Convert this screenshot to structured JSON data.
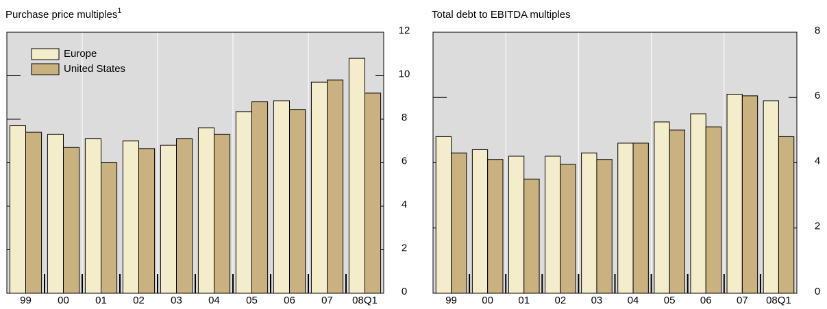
{
  "chart_data": [
    {
      "type": "bar",
      "title": "Purchase price multiples",
      "title_footnote": "1",
      "categories": [
        "99",
        "00",
        "01",
        "02",
        "03",
        "04",
        "05",
        "06",
        "07",
        "08Q1"
      ],
      "series": [
        {
          "name": "Europe",
          "color": "#f4edcb",
          "values": [
            7.7,
            7.3,
            7.1,
            7.0,
            6.8,
            7.6,
            8.35,
            8.85,
            9.7,
            10.8
          ]
        },
        {
          "name": "United States",
          "color": "#c9b27f",
          "values": [
            7.4,
            6.7,
            6.0,
            6.65,
            7.1,
            7.3,
            8.8,
            8.45,
            9.8,
            9.2
          ]
        }
      ],
      "ylim": [
        0,
        12
      ],
      "yticks": [
        0,
        2,
        4,
        6,
        8,
        10,
        12
      ],
      "legend": "upper left"
    },
    {
      "type": "bar",
      "title": "Total debt to EBITDA multiples",
      "categories": [
        "99",
        "00",
        "01",
        "02",
        "03",
        "04",
        "05",
        "06",
        "07",
        "08Q1"
      ],
      "series": [
        {
          "color": "#f4edcb",
          "values": [
            4.8,
            4.4,
            4.2,
            4.2,
            4.3,
            4.6,
            5.25,
            5.5,
            6.1,
            5.9
          ]
        },
        {
          "color": "#c9b27f",
          "values": [
            4.3,
            4.1,
            3.5,
            3.95,
            4.1,
            4.6,
            5.0,
            5.1,
            6.05,
            4.8
          ]
        }
      ],
      "ylim": [
        0,
        8
      ],
      "yticks": [
        0,
        2,
        4,
        6,
        8
      ]
    }
  ]
}
